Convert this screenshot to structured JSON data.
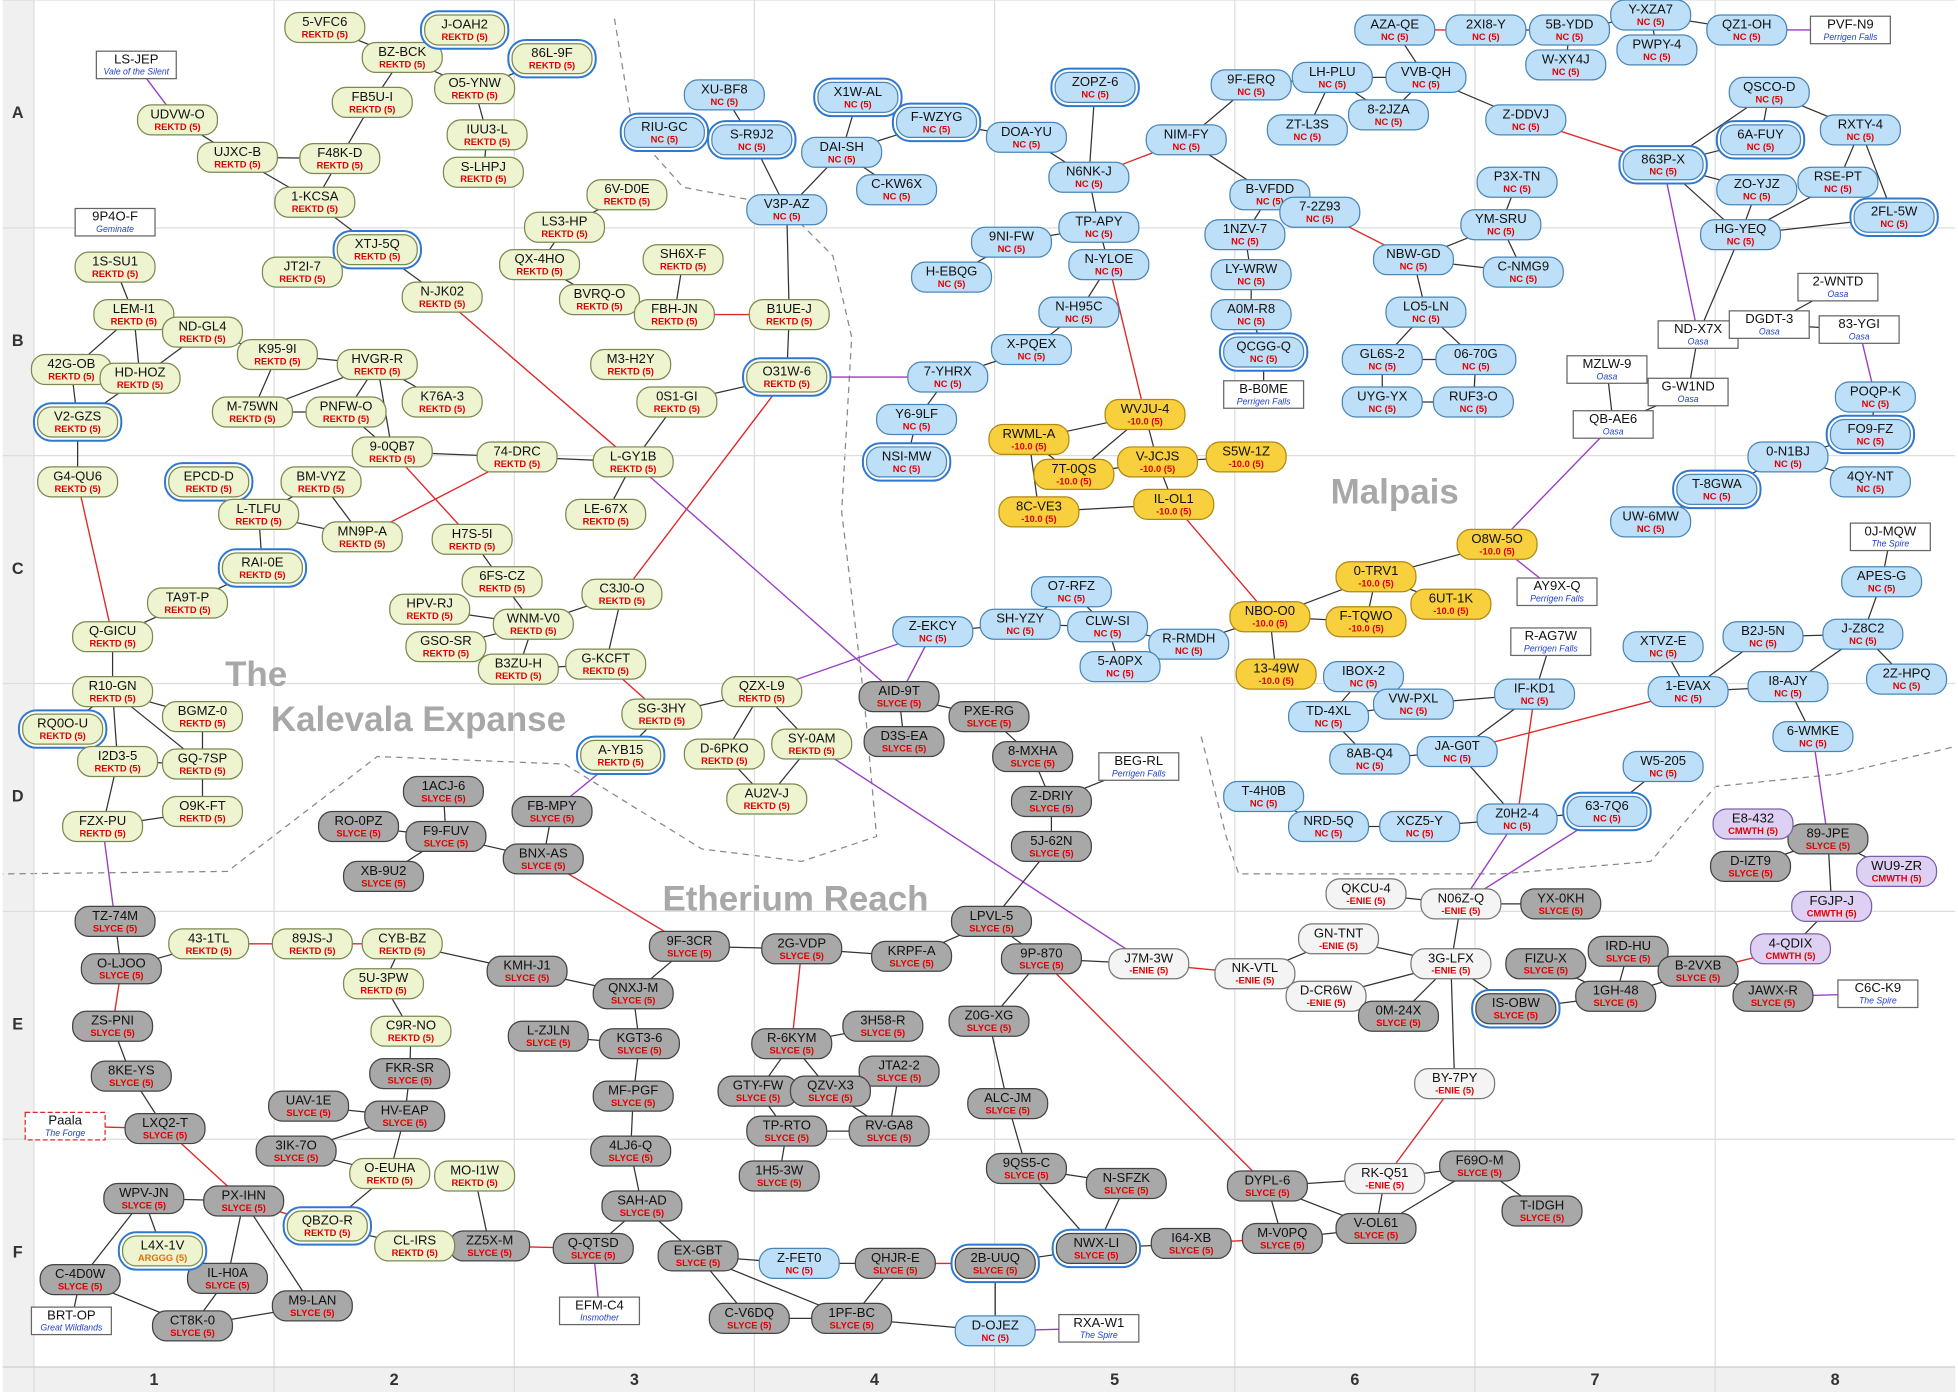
{
  "grid": {
    "rows": [
      "A",
      "B",
      "C",
      "D",
      "E",
      "F"
    ],
    "columns": [
      "1",
      "2",
      "3",
      "4",
      "5",
      "6",
      "7",
      "8"
    ]
  },
  "regions": [
    "The",
    "Kalevala Expanse",
    "Etherium Reach",
    "Malpais"
  ],
  "systems": [
    {
      "name": "5-VFC6",
      "owner": "REKTD (5)"
    },
    {
      "name": "BZ-BCK",
      "owner": "REKTD (5)"
    },
    {
      "name": "J-OAH2",
      "owner": "REKTD (5)"
    },
    {
      "name": "86L-9F",
      "owner": "REKTD (5)"
    },
    {
      "name": "O5-YNW",
      "owner": "REKTD (5)"
    },
    {
      "name": "FB5U-I",
      "owner": "REKTD (5)"
    },
    {
      "name": "IUU3-L",
      "owner": "REKTD (5)"
    },
    {
      "name": "F48K-D",
      "owner": "REKTD (5)"
    },
    {
      "name": "S-LHPJ",
      "owner": "REKTD (5)"
    },
    {
      "name": "1-KCSA",
      "owner": "REKTD (5)"
    },
    {
      "name": "UDVW-O",
      "owner": "REKTD (5)"
    },
    {
      "name": "UJXC-B",
      "owner": "REKTD (5)"
    },
    {
      "name": "XTJ-5Q",
      "owner": "REKTD (5)"
    },
    {
      "name": "JT2I-7",
      "owner": "REKTD (5)"
    },
    {
      "name": "N-JK02",
      "owner": "REKTD (5)"
    },
    {
      "name": "1S-SU1",
      "owner": "REKTD (5)"
    },
    {
      "name": "LEM-I1",
      "owner": "REKTD (5)"
    },
    {
      "name": "ND-GL4",
      "owner": "REKTD (5)"
    },
    {
      "name": "42G-OB",
      "owner": "REKTD (5)"
    },
    {
      "name": "HD-HOZ",
      "owner": "REKTD (5)"
    },
    {
      "name": "K95-9I",
      "owner": "REKTD (5)"
    },
    {
      "name": "HVGR-R",
      "owner": "REKTD (5)"
    },
    {
      "name": "M-75WN",
      "owner": "REKTD (5)"
    },
    {
      "name": "PNFW-O",
      "owner": "REKTD (5)"
    },
    {
      "name": "K76A-3",
      "owner": "REKTD (5)"
    },
    {
      "name": "V2-GZS",
      "owner": "REKTD (5)"
    },
    {
      "name": "9-0QB7",
      "owner": "REKTD (5)"
    },
    {
      "name": "G4-QU6",
      "owner": "REKTD (5)"
    },
    {
      "name": "EPCD-D",
      "owner": "REKTD (5)"
    },
    {
      "name": "BM-VYZ",
      "owner": "REKTD (5)"
    },
    {
      "name": "L-TLFU",
      "owner": "REKTD (5)"
    },
    {
      "name": "MN9P-A",
      "owner": "REKTD (5)"
    },
    {
      "name": "RAI-0E",
      "owner": "REKTD (5)"
    },
    {
      "name": "TA9T-P",
      "owner": "REKTD (5)"
    },
    {
      "name": "Q-GICU",
      "owner": "REKTD (5)"
    },
    {
      "name": "R10-GN",
      "owner": "REKTD (5)"
    },
    {
      "name": "RQ0O-U",
      "owner": "REKTD (5)"
    },
    {
      "name": "BGMZ-0",
      "owner": "REKTD (5)"
    },
    {
      "name": "I2D3-5",
      "owner": "REKTD (5)"
    },
    {
      "name": "GQ-7SP",
      "owner": "REKTD (5)"
    },
    {
      "name": "O9K-FT",
      "owner": "REKTD (5)"
    },
    {
      "name": "FZX-PU",
      "owner": "REKTD (5)"
    },
    {
      "name": "6V-D0E",
      "owner": "REKTD (5)"
    },
    {
      "name": "LS3-HP",
      "owner": "REKTD (5)"
    },
    {
      "name": "QX-4HO",
      "owner": "REKTD (5)"
    },
    {
      "name": "SH6X-F",
      "owner": "REKTD (5)"
    },
    {
      "name": "BVRQ-O",
      "owner": "REKTD (5)"
    },
    {
      "name": "FBH-JN",
      "owner": "REKTD (5)"
    },
    {
      "name": "M3-H2Y",
      "owner": "REKTD (5)"
    },
    {
      "name": "0S1-GI",
      "owner": "REKTD (5)"
    },
    {
      "name": "74-DRC",
      "owner": "REKTD (5)"
    },
    {
      "name": "L-GY1B",
      "owner": "REKTD (5)"
    },
    {
      "name": "LE-67X",
      "owner": "REKTD (5)"
    },
    {
      "name": "H7S-5I",
      "owner": "REKTD (5)"
    },
    {
      "name": "6FS-CZ",
      "owner": "REKTD (5)"
    },
    {
      "name": "HPV-RJ",
      "owner": "REKTD (5)"
    },
    {
      "name": "WNM-V0",
      "owner": "REKTD (5)"
    },
    {
      "name": "C3J0-O",
      "owner": "REKTD (5)"
    },
    {
      "name": "GSO-SR",
      "owner": "REKTD (5)"
    },
    {
      "name": "B3ZU-H",
      "owner": "REKTD (5)"
    },
    {
      "name": "G-KCFT",
      "owner": "REKTD (5)"
    },
    {
      "name": "SG-3HY",
      "owner": "REKTD (5)"
    },
    {
      "name": "A-YB15",
      "owner": "REKTD (5)"
    },
    {
      "name": "QZX-L9",
      "owner": "REKTD (5)"
    },
    {
      "name": "D-6PKO",
      "owner": "REKTD (5)"
    },
    {
      "name": "SY-0AM",
      "owner": "REKTD (5)"
    },
    {
      "name": "AU2V-J",
      "owner": "REKTD (5)"
    },
    {
      "name": "B1UE-J",
      "owner": "REKTD (5)"
    },
    {
      "name": "O31W-6",
      "owner": "REKTD (5)"
    },
    {
      "name": "XU-BF8",
      "owner": "NC (5)"
    },
    {
      "name": "X1W-AL",
      "owner": "NC (5)"
    },
    {
      "name": "RIU-GC",
      "owner": "NC (5)"
    },
    {
      "name": "S-R9J2",
      "owner": "NC (5)"
    },
    {
      "name": "F-WZYG",
      "owner": "NC (5)"
    },
    {
      "name": "DAI-SH",
      "owner": "NC (5)"
    },
    {
      "name": "C-KW6X",
      "owner": "NC (5)"
    },
    {
      "name": "V3P-AZ",
      "owner": "NC (5)"
    },
    {
      "name": "DOA-YU",
      "owner": "NC (5)"
    },
    {
      "name": "ZOPZ-6",
      "owner": "NC (5)"
    },
    {
      "name": "N6NK-J",
      "owner": "NC (5)"
    },
    {
      "name": "TP-APY",
      "owner": "NC (5)"
    },
    {
      "name": "9NI-FW",
      "owner": "NC (5)"
    },
    {
      "name": "H-EBQG",
      "owner": "NC (5)"
    },
    {
      "name": "N-YLOE",
      "owner": "NC (5)"
    },
    {
      "name": "N-H95C",
      "owner": "NC (5)"
    },
    {
      "name": "X-PQEX",
      "owner": "NC (5)"
    },
    {
      "name": "7-YHRX",
      "owner": "NC (5)"
    },
    {
      "name": "Y6-9LF",
      "owner": "NC (5)"
    },
    {
      "name": "NSI-MW",
      "owner": "NC (5)"
    },
    {
      "name": "NIM-FY",
      "owner": "NC (5)"
    },
    {
      "name": "9F-ERQ",
      "owner": "NC (5)"
    },
    {
      "name": "B-VFDD",
      "owner": "NC (5)"
    },
    {
      "name": "1NZV-7",
      "owner": "NC (5)"
    },
    {
      "name": "7-2Z93",
      "owner": "NC (5)"
    },
    {
      "name": "LY-WRW",
      "owner": "NC (5)"
    },
    {
      "name": "A0M-R8",
      "owner": "NC (5)"
    },
    {
      "name": "QCGG-Q",
      "owner": "NC (5)"
    },
    {
      "name": "AZA-QE",
      "owner": "NC (5)"
    },
    {
      "name": "2XI8-Y",
      "owner": "NC (5)"
    },
    {
      "name": "5B-YDD",
      "owner": "NC (5)"
    },
    {
      "name": "Y-XZA7",
      "owner": "NC (5)"
    },
    {
      "name": "QZ1-OH",
      "owner": "NC (5)"
    },
    {
      "name": "PWPY-4",
      "owner": "NC (5)"
    },
    {
      "name": "W-XY4J",
      "owner": "NC (5)"
    },
    {
      "name": "LH-PLU",
      "owner": "NC (5)"
    },
    {
      "name": "VVB-QH",
      "owner": "NC (5)"
    },
    {
      "name": "ZT-L3S",
      "owner": "NC (5)"
    },
    {
      "name": "8-2JZA",
      "owner": "NC (5)"
    },
    {
      "name": "Z-DDVJ",
      "owner": "NC (5)"
    },
    {
      "name": "P3X-TN",
      "owner": "NC (5)"
    },
    {
      "name": "YM-SRU",
      "owner": "NC (5)"
    },
    {
      "name": "NBW-GD",
      "owner": "NC (5)"
    },
    {
      "name": "C-NMG9",
      "owner": "NC (5)"
    },
    {
      "name": "LO5-LN",
      "owner": "NC (5)"
    },
    {
      "name": "GL6S-2",
      "owner": "NC (5)"
    },
    {
      "name": "06-70G",
      "owner": "NC (5)"
    },
    {
      "name": "UYG-YX",
      "owner": "NC (5)"
    },
    {
      "name": "RUF3-O",
      "owner": "NC (5)"
    },
    {
      "name": "QSCO-D",
      "owner": "NC (5)"
    },
    {
      "name": "6A-FUY",
      "owner": "NC (5)"
    },
    {
      "name": "RXTY-4",
      "owner": "NC (5)"
    },
    {
      "name": "863P-X",
      "owner": "NC (5)"
    },
    {
      "name": "ZO-YJZ",
      "owner": "NC (5)"
    },
    {
      "name": "RSE-PT",
      "owner": "NC (5)"
    },
    {
      "name": "HG-YEQ",
      "owner": "NC (5)"
    },
    {
      "name": "2FL-5W",
      "owner": "NC (5)"
    },
    {
      "name": "POQP-K",
      "owner": "NC (5)"
    },
    {
      "name": "FO9-FZ",
      "owner": "NC (5)"
    },
    {
      "name": "0-N1BJ",
      "owner": "NC (5)"
    },
    {
      "name": "4QY-NT",
      "owner": "NC (5)"
    },
    {
      "name": "T-8GWA",
      "owner": "NC (5)"
    },
    {
      "name": "UW-6MW",
      "owner": "NC (5)"
    },
    {
      "name": "APES-G",
      "owner": "NC (5)"
    },
    {
      "name": "J-Z8C2",
      "owner": "NC (5)"
    },
    {
      "name": "XTVZ-E",
      "owner": "NC (5)"
    },
    {
      "name": "B2J-5N",
      "owner": "NC (5)"
    },
    {
      "name": "2Z-HPQ",
      "owner": "NC (5)"
    },
    {
      "name": "1-EVAX",
      "owner": "NC (5)"
    },
    {
      "name": "I8-AJY",
      "owner": "NC (5)"
    },
    {
      "name": "6-WMKE",
      "owner": "NC (5)"
    },
    {
      "name": "WVJU-4",
      "owner": "-10.0 (5)"
    },
    {
      "name": "RWML-A",
      "owner": "-10.0 (5)"
    },
    {
      "name": "7T-0QS",
      "owner": "-10.0 (5)"
    },
    {
      "name": "V-JCJS",
      "owner": "-10.0 (5)"
    },
    {
      "name": "S5W-1Z",
      "owner": "-10.0 (5)"
    },
    {
      "name": "8C-VE3",
      "owner": "-10.0 (5)"
    },
    {
      "name": "IL-OL1",
      "owner": "-10.0 (5)"
    },
    {
      "name": "O8W-5O",
      "owner": "-10.0 (5)"
    },
    {
      "name": "0-TRV1",
      "owner": "-10.0 (5)"
    },
    {
      "name": "6UT-1K",
      "owner": "-10.0 (5)"
    },
    {
      "name": "F-TQWO",
      "owner": "-10.0 (5)"
    },
    {
      "name": "NBO-O0",
      "owner": "-10.0 (5)"
    },
    {
      "name": "13-49W",
      "owner": "-10.0 (5)"
    },
    {
      "name": "O7-RFZ",
      "owner": "NC (5)"
    },
    {
      "name": "SH-YZY",
      "owner": "NC (5)"
    },
    {
      "name": "CLW-SI",
      "owner": "NC (5)"
    },
    {
      "name": "Z-EKCY",
      "owner": "NC (5)"
    },
    {
      "name": "R-RMDH",
      "owner": "NC (5)"
    },
    {
      "name": "5-A0PX",
      "owner": "NC (5)"
    },
    {
      "name": "IBOX-2",
      "owner": "NC (5)"
    },
    {
      "name": "TD-4XL",
      "owner": "NC (5)"
    },
    {
      "name": "VW-PXL",
      "owner": "NC (5)"
    },
    {
      "name": "IF-KD1",
      "owner": "NC (5)"
    },
    {
      "name": "8AB-Q4",
      "owner": "NC (5)"
    },
    {
      "name": "JA-G0T",
      "owner": "NC (5)"
    },
    {
      "name": "W5-205",
      "owner": "NC (5)"
    },
    {
      "name": "T-4H0B",
      "owner": "NC (5)"
    },
    {
      "name": "NRD-5Q",
      "owner": "NC (5)"
    },
    {
      "name": "XCZ5-Y",
      "owner": "NC (5)"
    },
    {
      "name": "Z0H2-4",
      "owner": "NC (5)"
    },
    {
      "name": "63-7Q6",
      "owner": "NC (5)"
    },
    {
      "name": "AID-9T",
      "owner": "SLYCE (5)"
    },
    {
      "name": "PXE-RG",
      "owner": "SLYCE (5)"
    },
    {
      "name": "D3S-EA",
      "owner": "SLYCE (5)"
    },
    {
      "name": "8-MXHA",
      "owner": "SLYCE (5)"
    },
    {
      "name": "Z-DRIY",
      "owner": "SLYCE (5)"
    },
    {
      "name": "5J-62N",
      "owner": "SLYCE (5)"
    },
    {
      "name": "1ACJ-6",
      "owner": "SLYCE (5)"
    },
    {
      "name": "RO-0PZ",
      "owner": "SLYCE (5)"
    },
    {
      "name": "F9-FUV",
      "owner": "SLYCE (5)"
    },
    {
      "name": "XB-9U2",
      "owner": "SLYCE (5)"
    },
    {
      "name": "FB-MPY",
      "owner": "SLYCE (5)"
    },
    {
      "name": "BNX-AS",
      "owner": "SLYCE (5)"
    },
    {
      "name": "TZ-74M",
      "owner": "SLYCE (5)"
    },
    {
      "name": "O-LJOO",
      "owner": "SLYCE (5)"
    },
    {
      "name": "ZS-PNI",
      "owner": "SLYCE (5)"
    },
    {
      "name": "8KE-YS",
      "owner": "SLYCE (5)"
    },
    {
      "name": "LXQ2-T",
      "owner": "SLYCE (5)"
    },
    {
      "name": "UAV-1E",
      "owner": "SLYCE (5)"
    },
    {
      "name": "3IK-7O",
      "owner": "SLYCE (5)"
    },
    {
      "name": "FKR-SR",
      "owner": "SLYCE (5)"
    },
    {
      "name": "HV-EAP",
      "owner": "SLYCE (5)"
    },
    {
      "name": "KMH-J1",
      "owner": "SLYCE (5)"
    },
    {
      "name": "9F-3CR",
      "owner": "SLYCE (5)"
    },
    {
      "name": "QNXJ-M",
      "owner": "SLYCE (5)"
    },
    {
      "name": "L-ZJLN",
      "owner": "SLYCE (5)"
    },
    {
      "name": "KGT3-6",
      "owner": "SLYCE (5)"
    },
    {
      "name": "MF-PGF",
      "owner": "SLYCE (5)"
    },
    {
      "name": "4LJ6-Q",
      "owner": "SLYCE (5)"
    },
    {
      "name": "SAH-AD",
      "owner": "SLYCE (5)"
    },
    {
      "name": "Q-QTSD",
      "owner": "SLYCE (5)"
    },
    {
      "name": "ZZ5X-M",
      "owner": "SLYCE (5)"
    },
    {
      "name": "2G-VDP",
      "owner": "SLYCE (5)"
    },
    {
      "name": "KRPF-A",
      "owner": "SLYCE (5)"
    },
    {
      "name": "R-6KYM",
      "owner": "SLYCE (5)"
    },
    {
      "name": "3H58-R",
      "owner": "SLYCE (5)"
    },
    {
      "name": "JTA2-2",
      "owner": "SLYCE (5)"
    },
    {
      "name": "GTY-FW",
      "owner": "SLYCE (5)"
    },
    {
      "name": "QZV-X3",
      "owner": "SLYCE (5)"
    },
    {
      "name": "TP-RTO",
      "owner": "SLYCE (5)"
    },
    {
      "name": "RV-GA8",
      "owner": "SLYCE (5)"
    },
    {
      "name": "1H5-3W",
      "owner": "SLYCE (5)"
    },
    {
      "name": "LPVL-5",
      "owner": "SLYCE (5)"
    },
    {
      "name": "9P-870",
      "owner": "SLYCE (5)"
    },
    {
      "name": "Z0G-XG",
      "owner": "SLYCE (5)"
    },
    {
      "name": "ALC-JM",
      "owner": "SLYCE (5)"
    },
    {
      "name": "9QS5-C",
      "owner": "SLYCE (5)"
    },
    {
      "name": "N-SFZK",
      "owner": "SLYCE (5)"
    },
    {
      "name": "NWX-LI",
      "owner": "SLYCE (5)"
    },
    {
      "name": "I64-XB",
      "owner": "SLYCE (5)"
    },
    {
      "name": "2B-UUQ",
      "owner": "SLYCE (5)"
    },
    {
      "name": "QHJR-E",
      "owner": "SLYCE (5)"
    },
    {
      "name": "Z-FET0",
      "owner": "NC (5)"
    },
    {
      "name": "EX-GBT",
      "owner": "SLYCE (5)"
    },
    {
      "name": "C-V6DQ",
      "owner": "SLYCE (5)"
    },
    {
      "name": "1PF-BC",
      "owner": "SLYCE (5)"
    },
    {
      "name": "D-OJEZ",
      "owner": "NC (5)"
    },
    {
      "name": "DYPL-6",
      "owner": "SLYCE (5)"
    },
    {
      "name": "M-V0PQ",
      "owner": "SLYCE (5)"
    },
    {
      "name": "V-OL61",
      "owner": "SLYCE (5)"
    },
    {
      "name": "F69O-M",
      "owner": "SLYCE (5)"
    },
    {
      "name": "T-IDGH",
      "owner": "SLYCE (5)"
    },
    {
      "name": "WPV-JN",
      "owner": "SLYCE (5)"
    },
    {
      "name": "PX-IHN",
      "owner": "SLYCE (5)"
    },
    {
      "name": "C-4D0W",
      "owner": "SLYCE (5)"
    },
    {
      "name": "IL-H0A",
      "owner": "SLYCE (5)"
    },
    {
      "name": "M9-LAN",
      "owner": "SLYCE (5)"
    },
    {
      "name": "CT8K-0",
      "owner": "SLYCE (5)"
    },
    {
      "name": "43-1TL",
      "owner": "REKTD (5)"
    },
    {
      "name": "89JS-J",
      "owner": "REKTD (5)"
    },
    {
      "name": "CYB-BZ",
      "owner": "REKTD (5)"
    },
    {
      "name": "5U-3PW",
      "owner": "REKTD (5)"
    },
    {
      "name": "C9R-NO",
      "owner": "REKTD (5)"
    },
    {
      "name": "O-EUHA",
      "owner": "REKTD (5)"
    },
    {
      "name": "MO-I1W",
      "owner": "REKTD (5)"
    },
    {
      "name": "QBZO-R",
      "owner": "REKTD (5)"
    },
    {
      "name": "CL-IRS",
      "owner": "REKTD (5)"
    },
    {
      "name": "L4X-1V",
      "owner": "ARGGG (5)"
    },
    {
      "name": "89-JPE",
      "owner": "SLYCE (5)"
    },
    {
      "name": "E8-432",
      "owner": "CMWTH (5)"
    },
    {
      "name": "D-IZT9",
      "owner": "SLYCE (5)"
    },
    {
      "name": "WU9-ZR",
      "owner": "CMWTH (5)"
    },
    {
      "name": "FGJP-J",
      "owner": "CMWTH (5)"
    },
    {
      "name": "4-QDIX",
      "owner": "CMWTH (5)"
    },
    {
      "name": "IRD-HU",
      "owner": "SLYCE (5)"
    },
    {
      "name": "B-2VXB",
      "owner": "SLYCE (5)"
    },
    {
      "name": "JAWX-R",
      "owner": "SLYCE (5)"
    },
    {
      "name": "1GH-48",
      "owner": "SLYCE (5)"
    },
    {
      "name": "FIZU-X",
      "owner": "SLYCE (5)"
    },
    {
      "name": "IS-OBW",
      "owner": "SLYCE (5)"
    },
    {
      "name": "QKCU-4",
      "owner": "-ENIE (5)"
    },
    {
      "name": "N06Z-Q",
      "owner": "-ENIE (5)"
    },
    {
      "name": "YX-0KH",
      "owner": "SLYCE (5)"
    },
    {
      "name": "GN-TNT",
      "owner": "-ENIE (5)"
    },
    {
      "name": "3G-LFX",
      "owner": "-ENIE (5)"
    },
    {
      "name": "NK-VTL",
      "owner": "-ENIE (5)"
    },
    {
      "name": "D-CR6W",
      "owner": "-ENIE (5)"
    },
    {
      "name": "0M-24X",
      "owner": "SLYCE (5)"
    },
    {
      "name": "J7M-3W",
      "owner": "-ENIE (5)"
    },
    {
      "name": "BY-7PY",
      "owner": "-ENIE (5)"
    },
    {
      "name": "RK-Q51",
      "owner": "-ENIE (5)"
    }
  ],
  "landmarks": [
    {
      "name": "LS-JEP",
      "region": "Vale of the Silent"
    },
    {
      "name": "9P4O-F",
      "region": "Geminate"
    },
    {
      "name": "PVF-N9",
      "region": "Perrigen Falls"
    },
    {
      "name": "B-B0ME",
      "region": "Perrigen Falls"
    },
    {
      "name": "2-WNTD",
      "region": "Oasa"
    },
    {
      "name": "ND-X7X",
      "region": "Oasa"
    },
    {
      "name": "DGDT-3",
      "region": "Oasa"
    },
    {
      "name": "83-YGI",
      "region": "Oasa"
    },
    {
      "name": "MZLW-9",
      "region": "Oasa"
    },
    {
      "name": "G-W1ND",
      "region": "Oasa"
    },
    {
      "name": "QB-AE6",
      "region": "Oasa"
    },
    {
      "name": "0J-MQW",
      "region": "The Spire"
    },
    {
      "name": "AY9X-Q",
      "region": "Perrigen Falls"
    },
    {
      "name": "R-AG7W",
      "region": "Perrigen Falls"
    },
    {
      "name": "BEG-RL",
      "region": "Perrigen Falls"
    },
    {
      "name": "C6C-K9",
      "region": "The Spire"
    },
    {
      "name": "RXA-W1",
      "region": "The Spire"
    },
    {
      "name": "EFM-C4",
      "region": "Insmother"
    },
    {
      "name": "BRT-OP",
      "region": "Great Wildlands"
    },
    {
      "name": "Paala",
      "region": "The Forge"
    }
  ]
}
